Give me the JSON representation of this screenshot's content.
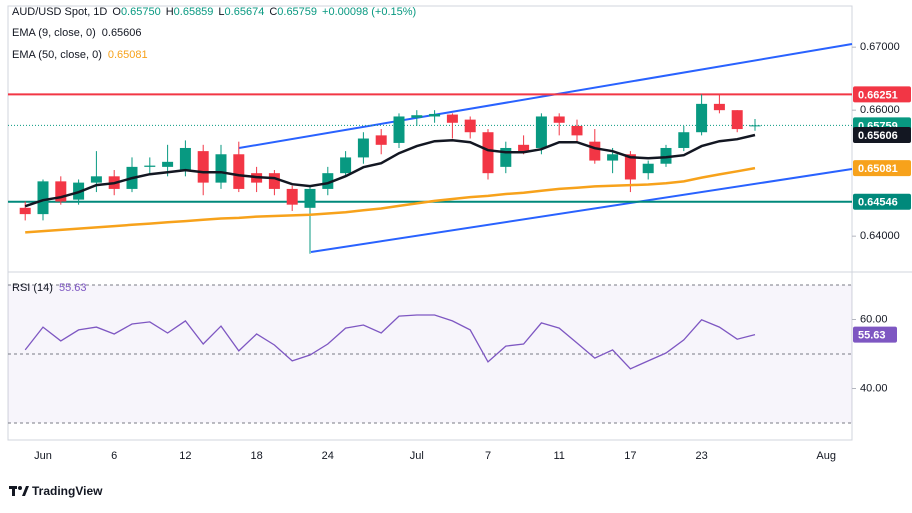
{
  "chart_data": [
    {
      "type": "candlestick",
      "title": "AUD/USD Spot, 1D",
      "ohlc_legend": [
        {
          "key": "O",
          "value": "0.65750"
        },
        {
          "key": "H",
          "value": "0.65859"
        },
        {
          "key": "L",
          "value": "0.65674"
        },
        {
          "key": "C",
          "value": "0.65759"
        }
      ],
      "change": "+0.00098 (+0.15%)",
      "categories": [
        null,
        "Jun",
        null,
        null,
        null,
        "6",
        null,
        null,
        null,
        "12",
        null,
        null,
        null,
        "18",
        null,
        null,
        null,
        "24",
        null,
        null,
        null,
        null,
        "Jul",
        null,
        null,
        null,
        "7",
        null,
        null,
        null,
        "11",
        null,
        null,
        null,
        "17",
        null,
        null,
        null,
        "23",
        null,
        null,
        null,
        null,
        null,
        null,
        "Aug",
        null
      ],
      "open": [
        0.6445,
        0.6435,
        0.6487,
        0.6458,
        0.6485,
        0.6495,
        0.6475,
        0.651,
        0.651,
        0.6505,
        0.6535,
        0.6485,
        0.653,
        0.65,
        0.65,
        0.6475,
        0.6445,
        0.6475,
        0.65,
        0.6525,
        0.656,
        0.6548,
        0.6588,
        0.659,
        0.6593,
        0.6585,
        0.6565,
        0.651,
        0.6545,
        0.654,
        0.659,
        0.6575,
        0.655,
        0.652,
        0.653,
        0.65,
        0.6515,
        0.654,
        0.6565,
        0.661,
        0.66,
        0.6575,
        null,
        null,
        null,
        null,
        null
      ],
      "high": [
        0.6455,
        0.649,
        0.6495,
        0.649,
        0.6535,
        0.6505,
        0.6525,
        0.6525,
        0.6545,
        0.6552,
        0.6545,
        0.6545,
        0.655,
        0.651,
        0.6505,
        0.648,
        0.648,
        0.651,
        0.6535,
        0.6565,
        0.657,
        0.6595,
        0.66,
        0.66,
        0.6595,
        0.659,
        0.657,
        0.655,
        0.656,
        0.6595,
        0.6595,
        0.6585,
        0.657,
        0.654,
        0.6535,
        0.652,
        0.6545,
        0.6575,
        0.6625,
        0.6625,
        0.66,
        0.65859,
        null,
        null,
        null,
        null,
        null
      ],
      "low": [
        0.6425,
        0.6425,
        0.645,
        0.645,
        0.647,
        0.6465,
        0.647,
        0.65,
        0.6495,
        0.6495,
        0.6465,
        0.6475,
        0.647,
        0.647,
        0.6465,
        0.644,
        0.6372,
        0.6465,
        0.6495,
        0.6515,
        0.653,
        0.654,
        0.6575,
        0.658,
        0.6555,
        0.6555,
        0.649,
        0.65,
        0.653,
        0.653,
        0.656,
        0.655,
        0.6515,
        0.65,
        0.647,
        0.649,
        0.651,
        0.6535,
        0.656,
        0.6595,
        0.6565,
        0.65674,
        null,
        null,
        null,
        null,
        null
      ],
      "close": [
        0.6435,
        0.6487,
        0.6455,
        0.6485,
        0.6495,
        0.6475,
        0.651,
        0.6512,
        0.6518,
        0.654,
        0.6485,
        0.653,
        0.6475,
        0.6485,
        0.6475,
        0.645,
        0.6475,
        0.65,
        0.6525,
        0.6555,
        0.6545,
        0.659,
        0.6592,
        0.6594,
        0.658,
        0.6565,
        0.65,
        0.654,
        0.6535,
        0.659,
        0.658,
        0.656,
        0.652,
        0.653,
        0.649,
        0.6515,
        0.654,
        0.6565,
        0.661,
        0.66,
        0.657,
        0.65759,
        null,
        null,
        null,
        null,
        null
      ],
      "up_color": "#089981",
      "down_color": "#f23645",
      "series": [
        {
          "name": "EMA (9, close, 0)",
          "legend_value": "0.65606",
          "color": "#131722",
          "values": [
            0.64476,
            0.64571,
            0.64619,
            0.64698,
            0.6481,
            0.64841,
            0.64921,
            0.64984,
            0.65016,
            0.65048,
            0.65016,
            0.65016,
            0.64968,
            0.64937,
            0.64921,
            0.64825,
            0.64794,
            0.64841,
            0.64952,
            0.65095,
            0.65159,
            0.65317,
            0.65429,
            0.65508,
            0.65524,
            0.65492,
            0.65365,
            0.65333,
            0.65333,
            0.65381,
            0.65492,
            0.65492,
            0.65397,
            0.65349,
            0.65254,
            0.65238,
            0.65254,
            0.65286,
            0.65429,
            0.65508,
            0.6554,
            0.65606,
            null,
            null,
            null,
            null,
            null
          ]
        },
        {
          "name": "EMA (50, close, 0)",
          "legend_value": "0.65081",
          "color": "#f7a21b",
          "values": [
            0.6406,
            0.6408,
            0.641,
            0.6412,
            0.6414,
            0.6416,
            0.6418,
            0.642,
            0.6422,
            0.6424,
            0.6426,
            0.6428,
            0.6429,
            0.6431,
            0.6432,
            0.6433,
            0.6434,
            0.6436,
            0.6438,
            0.6441,
            0.6444,
            0.6448,
            0.6452,
            0.6456,
            0.6459,
            0.6462,
            0.6464,
            0.6467,
            0.6469,
            0.6472,
            0.6475,
            0.6477,
            0.6479,
            0.648,
            0.6481,
            0.6482,
            0.6484,
            0.6487,
            0.6493,
            0.6498,
            0.6503,
            0.65081,
            null,
            null,
            null,
            null,
            null
          ]
        }
      ],
      "ylim": [
        0.6359,
        0.6759
      ],
      "yticks": [
        {
          "value": 0.67,
          "label": "0.67000"
        },
        {
          "value": 0.66,
          "label": "0.66000"
        },
        {
          "value": 0.64,
          "label": "0.64000"
        }
      ],
      "price_tags": [
        {
          "value": 0.66251,
          "label": "0.66251",
          "color": "#f23645",
          "line": "solid"
        },
        {
          "value": 0.65759,
          "label": "0.65759",
          "color": "#089981",
          "line": "dotted"
        },
        {
          "value": 0.65606,
          "label": "0.65606",
          "color": "#131722",
          "line": "none"
        },
        {
          "value": 0.65081,
          "label": "0.65081",
          "color": "#f7a21b",
          "line": "none"
        },
        {
          "value": 0.64546,
          "label": "0.64546",
          "color": "#00897b",
          "line": "solid"
        }
      ]
    },
    {
      "type": "line",
      "title": "RSI (14)",
      "legend_value": "55.63",
      "color": "#7e57c2",
      "values": [
        51.2,
        57.8,
        53.8,
        57.0,
        57.8,
        55.8,
        58.7,
        59.3,
        56.1,
        59.6,
        52.9,
        58.1,
        50.9,
        55.8,
        52.6,
        48.0,
        49.7,
        52.9,
        57.5,
        58.4,
        56.1,
        61.0,
        61.3,
        61.3,
        59.6,
        57.0,
        47.7,
        52.3,
        52.9,
        59.0,
        57.5,
        53.2,
        48.8,
        51.2,
        45.7,
        48.0,
        50.3,
        54.1,
        59.9,
        57.8,
        54.3,
        55.63,
        null,
        null,
        null,
        null,
        null
      ],
      "ylim": [
        30,
        70
      ],
      "yticks": [
        {
          "value": 60,
          "label": "60.00"
        },
        {
          "value": 40,
          "label": "40.00"
        }
      ],
      "levels": [
        70,
        50,
        30
      ],
      "value_tag": {
        "value": 55.63,
        "label": "55.63"
      }
    }
  ],
  "brand": "TradingView"
}
